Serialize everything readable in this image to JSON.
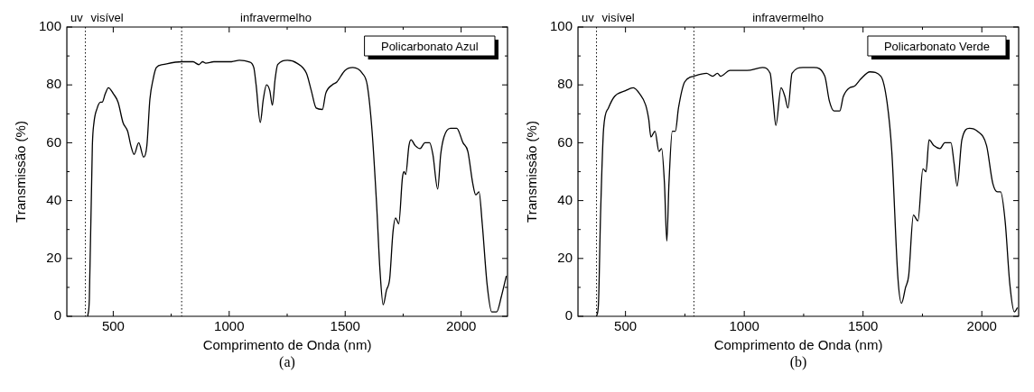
{
  "chart_data": [
    {
      "type": "line",
      "xlabel": "Comprimento de Onda (nm)",
      "ylabel": "Transmissão (%)",
      "annotations": [
        "uv",
        "visível",
        "infravermelho",
        "(a)"
      ],
      "legend": "top right",
      "grid": false,
      "marker": "none",
      "line_style": "solid",
      "xlim": [
        300,
        2200
      ],
      "xticks": [
        500,
        {
          "value": 750,
          "label": null
        },
        1000,
        {
          "value": 1250,
          "label": null
        },
        1500,
        {
          "value": 1750,
          "label": null
        },
        2000
      ],
      "ylim": [
        0,
        100
      ],
      "yticks": [
        0,
        {
          "value": 10,
          "label": null
        },
        20,
        {
          "value": 30,
          "label": null
        },
        40,
        {
          "value": 50,
          "label": null
        },
        60,
        {
          "value": 70,
          "label": null
        },
        80,
        {
          "value": 90,
          "label": null
        },
        100
      ],
      "ref_lines": [
        {
          "axis": "x",
          "value": 380,
          "line_style": "dotted"
        },
        {
          "axis": "x",
          "value": 795,
          "line_style": "dotted"
        }
      ],
      "series": [
        {
          "name": "Policarbonato Azul",
          "color": "#000000",
          "x": [
            390,
            397,
            410,
            417,
            431,
            445,
            452,
            466,
            479,
            500,
            521,
            542,
            562,
            576,
            590,
            610,
            631,
            645,
            658,
            672,
            686,
            714,
            795,
            844,
            869,
            885,
            899,
            934,
            1010,
            1044,
            1085,
            1106,
            1116,
            1134,
            1147,
            1161,
            1175,
            1186,
            1198,
            1209,
            1251,
            1292,
            1333,
            1354,
            1375,
            1402,
            1416,
            1444,
            1464,
            1499,
            1533,
            1574,
            1595,
            1616,
            1636,
            1650,
            1664,
            1678,
            1692,
            1706,
            1717,
            1731,
            1747,
            1754,
            1761,
            1775,
            1784,
            1802,
            1823,
            1844,
            1864,
            1878,
            1899,
            1912,
            1926,
            1954,
            1981,
            2008,
            2029,
            2050,
            2063,
            2077,
            2091,
            2112,
            2132,
            2153,
            2174,
            2195
          ],
          "values": [
            0,
            6,
            59,
            67,
            72,
            74,
            74,
            77,
            79,
            77,
            74,
            67,
            64,
            59,
            56,
            60,
            55,
            59,
            75,
            82,
            86,
            87,
            88,
            88,
            87,
            88,
            87.5,
            88,
            88,
            88.5,
            88,
            86,
            80,
            67,
            75,
            80,
            78,
            73,
            82,
            87,
            88.5,
            87.5,
            84,
            78,
            72,
            71.5,
            77,
            80,
            81,
            85,
            86,
            84,
            80,
            64,
            38,
            16,
            4,
            9,
            13,
            29,
            34,
            32,
            48,
            50,
            49,
            59,
            61,
            59,
            58,
            60,
            60,
            56,
            44,
            56,
            62,
            65,
            65,
            60,
            57,
            46,
            42,
            43,
            32,
            11,
            1.5,
            1.5,
            7,
            14
          ]
        }
      ]
    },
    {
      "type": "line",
      "xlabel": "Comprimento de Onda (nm)",
      "ylabel": "Transmissão (%)",
      "annotations": [
        "uv",
        "visível",
        "infravermelho",
        "(b)"
      ],
      "legend": "top right",
      "grid": false,
      "marker": "none",
      "line_style": "solid",
      "xlim": [
        300,
        2155
      ],
      "xticks": [
        500,
        {
          "value": 750,
          "label": null
        },
        1000,
        {
          "value": 1250,
          "label": null
        },
        1500,
        {
          "value": 1750,
          "label": null
        },
        2000
      ],
      "ylim": [
        0,
        100
      ],
      "yticks": [
        0,
        {
          "value": 10,
          "label": null
        },
        20,
        {
          "value": 30,
          "label": null
        },
        40,
        {
          "value": 50,
          "label": null
        },
        60,
        {
          "value": 70,
          "label": null
        },
        80,
        {
          "value": 90,
          "label": null
        },
        100
      ],
      "ref_lines": [
        {
          "axis": "x",
          "value": 378,
          "line_style": "dotted"
        },
        {
          "axis": "x",
          "value": 788,
          "line_style": "dotted"
        }
      ],
      "series": [
        {
          "name": "Policarbonato Verde",
          "color": "#000000",
          "x": [
            378,
            386,
            395,
            408,
            428,
            454,
            500,
            533,
            559,
            585,
            598,
            607,
            624,
            641,
            652,
            664,
            674,
            683,
            697,
            710,
            723,
            749,
            788,
            841,
            867,
            887,
            900,
            940,
            1012,
            1077,
            1109,
            1122,
            1133,
            1155,
            1171,
            1184,
            1201,
            1247,
            1293,
            1339,
            1358,
            1378,
            1402,
            1417,
            1443,
            1463,
            1490,
            1529,
            1575,
            1601,
            1621,
            1647,
            1662,
            1679,
            1692,
            1712,
            1731,
            1752,
            1765,
            1778,
            1798,
            1824,
            1844,
            1870,
            1883,
            1896,
            1916,
            1948,
            1981,
            2020,
            2046,
            2066,
            2079,
            2098,
            2118,
            2137,
            2150
          ],
          "values": [
            0,
            4,
            35,
            65,
            72,
            76,
            78,
            79,
            77,
            73,
            68,
            62,
            64,
            57,
            58,
            46,
            26,
            46,
            64,
            64,
            72,
            81,
            83,
            84,
            83,
            84,
            83,
            85,
            85,
            86,
            84,
            74,
            66,
            79,
            76,
            72,
            84,
            86,
            86,
            83,
            74.5,
            71,
            71,
            76,
            79,
            79.5,
            82,
            84.5,
            83,
            74,
            57,
            13,
            4.5,
            10,
            14,
            35,
            33,
            51,
            50,
            61,
            59,
            58,
            60,
            60,
            53,
            45,
            61,
            65,
            64,
            59,
            46,
            43,
            43,
            33,
            11,
            1.5,
            3
          ]
        }
      ]
    }
  ]
}
